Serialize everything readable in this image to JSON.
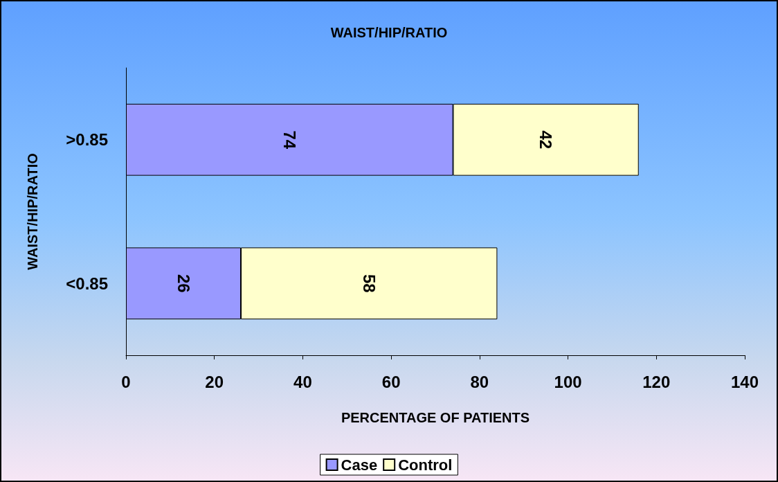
{
  "chart_data": {
    "type": "bar",
    "title": "WAIST/HIP/RATIO",
    "xlabel": "PERCENTAGE OF PATIENTS",
    "ylabel": "WAIST/HIP/RATIO",
    "orientation": "horizontal",
    "stacked": true,
    "categories": [
      ">0.85",
      "<0.85"
    ],
    "series": [
      {
        "name": "Case",
        "color": "#9999ff",
        "values": [
          74,
          26
        ]
      },
      {
        "name": "Control",
        "color": "#ffffcc",
        "values": [
          42,
          58
        ]
      }
    ],
    "xlim": [
      0,
      140
    ],
    "xticks": [
      0,
      20,
      40,
      60,
      80,
      100,
      120,
      140
    ],
    "data_labels": true,
    "grid": false,
    "legend": "bottom"
  }
}
